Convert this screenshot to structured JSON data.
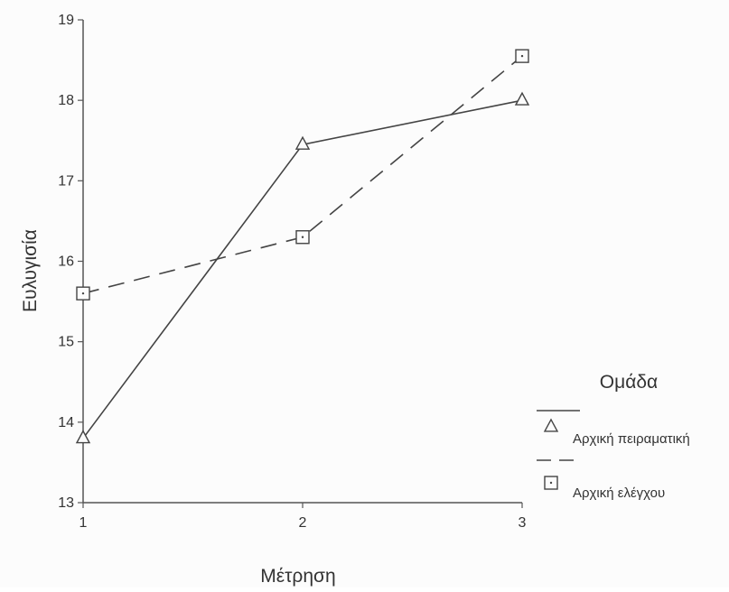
{
  "chart_data": {
    "type": "line",
    "xlabel": "Μέτρηση",
    "ylabel": "Ευλυγισία",
    "x": [
      1,
      2,
      3
    ],
    "xlim": [
      1,
      3
    ],
    "ylim": [
      13,
      19
    ],
    "yticks": [
      13,
      14,
      15,
      16,
      17,
      18,
      19
    ],
    "xticks": [
      1,
      2,
      3
    ],
    "grid": false,
    "legend": {
      "title": "Ομάδα",
      "placement": "right"
    },
    "series": [
      {
        "name": "Αρχική πειραματική",
        "values": [
          13.8,
          17.45,
          18.0
        ],
        "line_style": "solid",
        "marker": "triangle",
        "color": "#444444"
      },
      {
        "name": "Αρχική ελέγχου",
        "values": [
          15.6,
          16.3,
          18.55
        ],
        "line_style": "dashed",
        "marker": "square",
        "color": "#444444"
      }
    ]
  }
}
